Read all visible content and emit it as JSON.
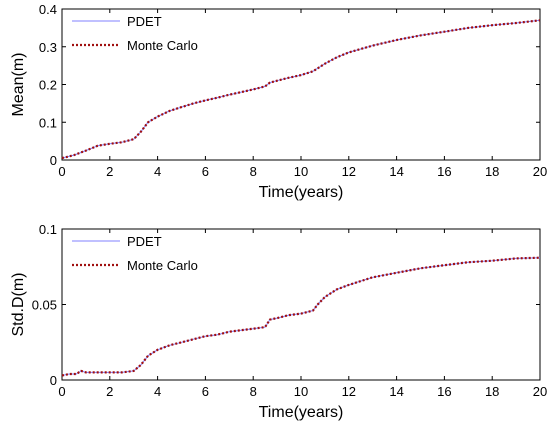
{
  "chart_data": [
    {
      "type": "line",
      "xlabel": "Time(years)",
      "ylabel": "Mean(m)",
      "xlim": [
        0,
        20
      ],
      "ylim": [
        0,
        0.4
      ],
      "xticks": [
        "0",
        "2",
        "4",
        "6",
        "8",
        "10",
        "12",
        "14",
        "16",
        "18",
        "20"
      ],
      "yticks": [
        "0",
        "0.1",
        "0.2",
        "0.3",
        "0.4"
      ],
      "legend": {
        "placement": "top-left",
        "entries": [
          "PDET",
          "Monte Carlo"
        ]
      },
      "series": [
        {
          "name": "PDET",
          "color": "#8080ff",
          "style": "solid",
          "x": [
            0,
            0.5,
            1,
            1.5,
            2,
            2.5,
            3,
            3.3,
            3.6,
            4,
            4.5,
            5,
            5.5,
            6,
            6.5,
            7,
            7.5,
            8,
            8.5,
            8.7,
            9,
            9.5,
            10,
            10.5,
            11,
            11.5,
            12,
            13,
            14,
            15,
            16,
            17,
            18,
            19,
            20
          ],
          "y": [
            0.005,
            0.013,
            0.025,
            0.038,
            0.043,
            0.047,
            0.055,
            0.075,
            0.1,
            0.115,
            0.13,
            0.14,
            0.15,
            0.158,
            0.165,
            0.173,
            0.18,
            0.187,
            0.195,
            0.205,
            0.21,
            0.218,
            0.225,
            0.235,
            0.255,
            0.272,
            0.285,
            0.303,
            0.318,
            0.33,
            0.34,
            0.35,
            0.357,
            0.363,
            0.37
          ]
        },
        {
          "name": "Monte Carlo",
          "color": "#a01010",
          "style": "dotted",
          "x": [
            0,
            0.5,
            1,
            1.5,
            2,
            2.5,
            3,
            3.3,
            3.6,
            4,
            4.5,
            5,
            5.5,
            6,
            6.5,
            7,
            7.5,
            8,
            8.5,
            8.7,
            9,
            9.5,
            10,
            10.5,
            11,
            11.5,
            12,
            13,
            14,
            15,
            16,
            17,
            18,
            19,
            20
          ],
          "y": [
            0.005,
            0.013,
            0.025,
            0.038,
            0.043,
            0.047,
            0.055,
            0.075,
            0.1,
            0.115,
            0.13,
            0.14,
            0.15,
            0.158,
            0.165,
            0.173,
            0.18,
            0.187,
            0.195,
            0.205,
            0.21,
            0.218,
            0.225,
            0.235,
            0.255,
            0.272,
            0.285,
            0.303,
            0.318,
            0.33,
            0.34,
            0.35,
            0.357,
            0.363,
            0.37
          ]
        }
      ]
    },
    {
      "type": "line",
      "xlabel": "Time(years)",
      "ylabel": "Std.D(m)",
      "xlim": [
        0,
        20
      ],
      "ylim": [
        0,
        0.1
      ],
      "xticks": [
        "0",
        "2",
        "4",
        "6",
        "8",
        "10",
        "12",
        "14",
        "16",
        "18",
        "20"
      ],
      "yticks": [
        "0",
        "0.05",
        "0.1"
      ],
      "legend": {
        "placement": "top-left",
        "entries": [
          "PDET",
          "Monte Carlo"
        ]
      },
      "series": [
        {
          "name": "PDET",
          "color": "#8080ff",
          "style": "solid",
          "x": [
            0,
            0.3,
            0.6,
            0.8,
            1,
            2,
            2.5,
            3,
            3.3,
            3.6,
            4,
            4.5,
            5,
            5.5,
            6,
            6.5,
            7,
            7.5,
            8,
            8.5,
            8.7,
            9,
            9.5,
            10,
            10.5,
            10.7,
            11,
            11.5,
            12,
            13,
            14,
            15,
            16,
            17,
            18,
            19,
            20
          ],
          "y": [
            0.003,
            0.004,
            0.004,
            0.006,
            0.005,
            0.005,
            0.005,
            0.006,
            0.01,
            0.016,
            0.02,
            0.023,
            0.025,
            0.027,
            0.029,
            0.03,
            0.032,
            0.033,
            0.034,
            0.035,
            0.04,
            0.041,
            0.043,
            0.044,
            0.046,
            0.05,
            0.055,
            0.06,
            0.063,
            0.068,
            0.071,
            0.074,
            0.076,
            0.078,
            0.079,
            0.0805,
            0.081
          ]
        },
        {
          "name": "Monte Carlo",
          "color": "#a01010",
          "style": "dotted",
          "x": [
            0,
            0.3,
            0.6,
            0.8,
            1,
            2,
            2.5,
            3,
            3.3,
            3.6,
            4,
            4.5,
            5,
            5.5,
            6,
            6.5,
            7,
            7.5,
            8,
            8.5,
            8.7,
            9,
            9.5,
            10,
            10.5,
            10.7,
            11,
            11.5,
            12,
            13,
            14,
            15,
            16,
            17,
            18,
            19,
            20
          ],
          "y": [
            0.003,
            0.004,
            0.004,
            0.006,
            0.005,
            0.005,
            0.005,
            0.006,
            0.01,
            0.016,
            0.02,
            0.023,
            0.025,
            0.027,
            0.029,
            0.03,
            0.032,
            0.033,
            0.034,
            0.035,
            0.04,
            0.041,
            0.043,
            0.044,
            0.046,
            0.05,
            0.055,
            0.06,
            0.063,
            0.068,
            0.071,
            0.074,
            0.076,
            0.078,
            0.079,
            0.0805,
            0.081
          ]
        }
      ]
    }
  ]
}
